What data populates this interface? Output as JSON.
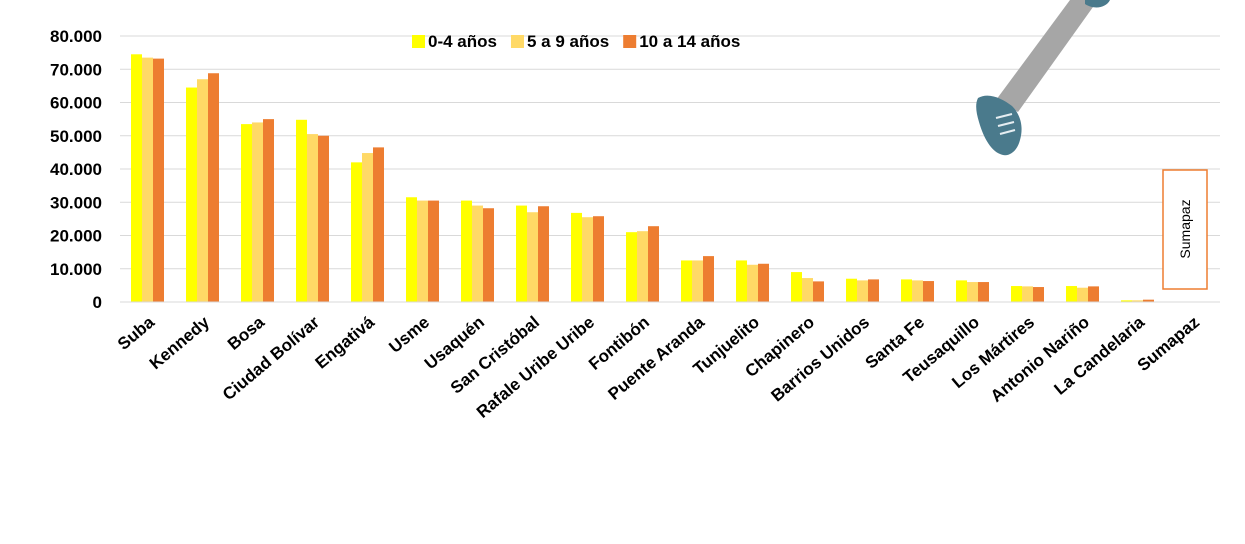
{
  "chart_data": {
    "type": "bar",
    "categories": [
      "Suba",
      "Kennedy",
      "Bosa",
      "Ciudad Bolívar",
      "Engativá",
      "Usme",
      "Usaquén",
      "San Cristóbal",
      "Rafale Uribe Uribe",
      "Fontibón",
      "Puente  Aranda",
      "Tunjuelito",
      "Chapinero",
      "Barrios Unidos",
      "Santa Fe",
      "Teusaquillo",
      "Los Mártires",
      "Antonio Nariño",
      "La Candelaria",
      "Sumapaz"
    ],
    "series": [
      {
        "name": "0-4 años",
        "color": "#ffff00",
        "values": [
          74500,
          64500,
          53500,
          54800,
          42000,
          31500,
          30500,
          29000,
          26800,
          21000,
          12500,
          12500,
          9000,
          7000,
          6800,
          6500,
          4800,
          4800,
          500,
          0
        ]
      },
      {
        "name": "5 a 9 años",
        "color": "#ffd966",
        "values": [
          73500,
          67000,
          54000,
          50500,
          44800,
          30500,
          29000,
          27000,
          25500,
          21300,
          12500,
          11200,
          7200,
          6500,
          6500,
          6000,
          4700,
          4300,
          500,
          0
        ]
      },
      {
        "name": "10 a 14 años",
        "color": "#ed7d31",
        "values": [
          73200,
          68800,
          55000,
          50000,
          46500,
          30500,
          28200,
          28800,
          25800,
          22800,
          13800,
          11500,
          6200,
          6800,
          6300,
          6000,
          4500,
          4700,
          700,
          0
        ]
      }
    ],
    "y_ticks": [
      "0",
      "10.000",
      "20.000",
      "30.000",
      "40.000",
      "50.000",
      "60.000",
      "70.000",
      "80.000"
    ],
    "ylim": [
      0,
      80000
    ],
    "grid": true,
    "legend_position": "top-center",
    "annotation": "Sumapaz"
  }
}
